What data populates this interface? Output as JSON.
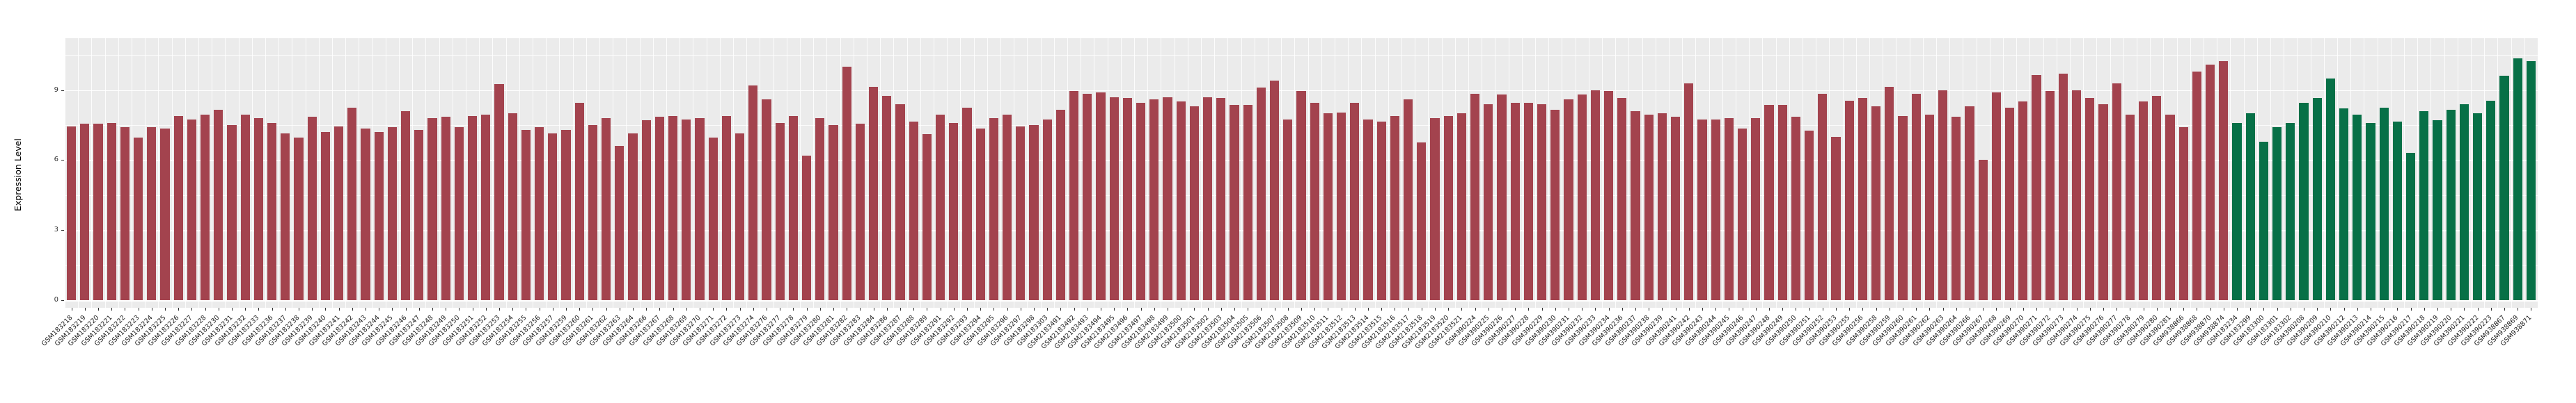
{
  "y_axis": {
    "title": "Expression Level",
    "tick_labels": [
      "0",
      "3",
      "6",
      "9"
    ]
  },
  "style": {
    "panel_bg": "#EBEBEB",
    "grid_color": "#FFFFFF",
    "red_bar_color": "#A3434E",
    "green_bar_color": "#077047",
    "axis_text_color": "#1a1a1a"
  },
  "chart_data": {
    "type": "bar",
    "title": "",
    "xlabel": "",
    "ylabel": "Expression Level",
    "yticks": [
      0,
      3,
      6,
      9
    ],
    "ylim": [
      -0.35,
      11.2
    ],
    "grid": "on",
    "legend": "none",
    "series": [
      {
        "name": "group-red",
        "color": "#A3434E",
        "categories": [
          "GSM183218",
          "GSM183219",
          "GSM183220",
          "GSM183221",
          "GSM183222",
          "GSM183223",
          "GSM183224",
          "GSM183225",
          "GSM183226",
          "GSM183227",
          "GSM183228",
          "GSM183230",
          "GSM183231",
          "GSM183232",
          "GSM183233",
          "GSM183236",
          "GSM183237",
          "GSM183238",
          "GSM183239",
          "GSM183240",
          "GSM183241",
          "GSM183242",
          "GSM183243",
          "GSM183244",
          "GSM183245",
          "GSM183246",
          "GSM183247",
          "GSM183248",
          "GSM183249",
          "GSM183250",
          "GSM183251",
          "GSM183252",
          "GSM183253",
          "GSM183254",
          "GSM183255",
          "GSM183256",
          "GSM183257",
          "GSM183259",
          "GSM183260",
          "GSM183261",
          "GSM183262",
          "GSM183263",
          "GSM183264",
          "GSM183266",
          "GSM183267",
          "GSM183268",
          "GSM183269",
          "GSM183270",
          "GSM183271",
          "GSM183272",
          "GSM183273",
          "GSM183274",
          "GSM183276",
          "GSM183277",
          "GSM183278",
          "GSM183279",
          "GSM183280",
          "GSM183281",
          "GSM183282",
          "GSM183283",
          "GSM183284",
          "GSM183286",
          "GSM183287",
          "GSM183288",
          "GSM183289",
          "GSM183291",
          "GSM183292",
          "GSM183293",
          "GSM183294",
          "GSM183295",
          "GSM183296",
          "GSM183297",
          "GSM183298",
          "GSM183303",
          "GSM2183491",
          "GSM2183492",
          "GSM2183493",
          "GSM2183494",
          "GSM2183495",
          "GSM2183496",
          "GSM2183497",
          "GSM2183498",
          "GSM2183499",
          "GSM2183500",
          "GSM2183501",
          "GSM2183502",
          "GSM2183503",
          "GSM2183504",
          "GSM2183505",
          "GSM2183506",
          "GSM2183507",
          "GSM2183508",
          "GSM2183509",
          "GSM2183510",
          "GSM2183511",
          "GSM2183512",
          "GSM2183513",
          "GSM2183514",
          "GSM2183515",
          "GSM2183516",
          "GSM2183517",
          "GSM2183518",
          "GSM2183519",
          "GSM2183520",
          "GSM2183521",
          "GSM390224",
          "GSM390225",
          "GSM390226",
          "GSM390227",
          "GSM390228",
          "GSM390229",
          "GSM390230",
          "GSM390231",
          "GSM390232",
          "GSM390233",
          "GSM390234",
          "GSM390236",
          "GSM390237",
          "GSM390238",
          "GSM390239",
          "GSM390241",
          "GSM390242",
          "GSM390243",
          "GSM390244",
          "GSM390245",
          "GSM390246",
          "GSM390247",
          "GSM390248",
          "GSM390249",
          "GSM390250",
          "GSM390251",
          "GSM390252",
          "GSM390253",
          "GSM390255",
          "GSM390256",
          "GSM390258",
          "GSM390259",
          "GSM390260",
          "GSM390261",
          "GSM390262",
          "GSM390263",
          "GSM390264",
          "GSM390266",
          "GSM390267",
          "GSM390268",
          "GSM390269",
          "GSM390270",
          "GSM390271",
          "GSM390272",
          "GSM390273",
          "GSM390274",
          "GSM390275",
          "GSM390276",
          "GSM390277",
          "GSM390278",
          "GSM390279",
          "GSM390280",
          "GSM390281",
          "GSM938866",
          "GSM938868",
          "GSM938870",
          "GSM938874"
        ],
        "values": [
          7.45,
          7.55,
          7.55,
          7.6,
          7.4,
          6.95,
          7.4,
          7.35,
          7.9,
          7.75,
          7.95,
          8.15,
          7.5,
          7.95,
          7.8,
          7.6,
          7.15,
          6.95,
          7.85,
          7.2,
          7.45,
          8.25,
          7.35,
          7.2,
          7.4,
          8.1,
          7.3,
          7.8,
          7.85,
          7.4,
          7.9,
          7.95,
          9.25,
          8.0,
          7.3,
          7.4,
          7.15,
          7.3,
          8.45,
          7.5,
          7.8,
          6.6,
          7.15,
          7.7,
          7.85,
          7.9,
          7.75,
          7.8,
          6.95,
          7.9,
          7.15,
          9.2,
          8.6,
          7.6,
          7.9,
          6.2,
          7.8,
          7.5,
          10.0,
          7.55,
          9.15,
          8.75,
          8.4,
          7.65,
          7.1,
          7.95,
          7.6,
          8.25,
          7.35,
          7.8,
          7.95,
          7.45,
          7.5,
          7.75,
          8.15,
          8.95,
          8.85,
          8.9,
          8.7,
          8.65,
          8.45,
          8.6,
          8.7,
          8.5,
          8.3,
          8.7,
          8.65,
          8.35,
          8.35,
          9.1,
          9.4,
          7.75,
          8.95,
          8.45,
          8.0,
          8.05,
          8.45,
          7.75,
          7.65,
          7.9,
          8.6,
          6.75,
          7.8,
          7.9,
          8.0,
          8.85,
          8.4,
          8.8,
          8.45,
          8.45,
          8.4,
          8.15,
          8.6,
          8.8,
          9.0,
          8.95,
          8.65,
          8.1,
          7.95,
          8.0,
          7.85,
          9.3,
          7.75,
          7.75,
          7.8,
          7.35,
          7.8,
          8.35,
          8.35,
          7.85,
          7.25,
          8.85,
          7.0,
          8.55,
          8.65,
          8.3,
          9.15,
          7.9,
          8.85,
          7.95,
          9.0,
          7.85,
          8.3,
          6.0,
          8.9,
          8.25,
          8.5,
          9.65,
          8.95,
          9.7,
          9.0,
          8.65,
          8.4,
          9.3,
          7.95,
          8.5,
          8.75,
          7.95,
          7.4,
          9.8,
          10.1,
          10.25
        ]
      },
      {
        "name": "group-green",
        "color": "#077047",
        "categories": [
          "GSM183234",
          "GSM183299",
          "GSM183300",
          "GSM183301",
          "GSM183302",
          "GSM390208",
          "GSM390209",
          "GSM390210",
          "GSM390212",
          "GSM390213",
          "GSM390214",
          "GSM390215",
          "GSM390216",
          "GSM390217",
          "GSM390218",
          "GSM390219",
          "GSM390220",
          "GSM390221",
          "GSM390222",
          "GSM390223",
          "GSM938867",
          "GSM938869",
          "GSM938871"
        ],
        "values": [
          7.6,
          8.0,
          6.8,
          7.4,
          7.6,
          8.45,
          8.65,
          9.5,
          8.2,
          7.95,
          7.6,
          8.25,
          7.65,
          6.3,
          8.1,
          7.7,
          8.15,
          8.4,
          8.0,
          8.55,
          9.6,
          10.35,
          10.25
        ]
      }
    ]
  }
}
